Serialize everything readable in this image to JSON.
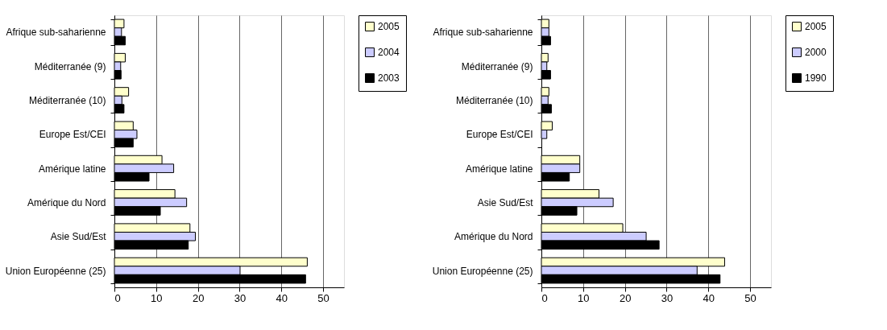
{
  "chart_data": [
    {
      "type": "bar",
      "orientation": "horizontal",
      "categories": [
        "Afrique sub-saharienne",
        "Méditerranée (9)",
        "Méditerranée (10)",
        "Europe Est/CEI",
        "Amérique latine",
        "Amérique du Nord",
        "Asie Sud/Est",
        "Union Européenne (25)"
      ],
      "series": [
        {
          "name": "2005",
          "color": "#ffffcc",
          "values": [
            2.3,
            2.6,
            3.4,
            4.5,
            11.4,
            14.5,
            18.1,
            46.2
          ]
        },
        {
          "name": "2004",
          "color": "#ccccff",
          "values": [
            1.7,
            1.5,
            1.8,
            5.4,
            14.2,
            17.3,
            19.4,
            30.1
          ]
        },
        {
          "name": "2003",
          "color": "#000000",
          "values": [
            2.6,
            1.6,
            2.3,
            4.5,
            8.3,
            11.0,
            17.7,
            45.8
          ]
        }
      ],
      "xlim": [
        0,
        55
      ],
      "xticks": [
        0,
        10,
        20,
        30,
        40,
        50
      ],
      "grid": "x",
      "legend": "right"
    },
    {
      "type": "bar",
      "orientation": "horizontal",
      "categories": [
        "Afrique sub-saharienne",
        "Méditerranée (9)",
        "Méditerranée (10)",
        "Europe Est/CEI",
        "Amérique latine",
        "Asie Sud/Est",
        "Amérique du Nord",
        "Union Européenne (25)"
      ],
      "series": [
        {
          "name": "2005",
          "color": "#ffffcc",
          "values": [
            1.8,
            1.6,
            1.8,
            2.6,
            9.2,
            13.8,
            19.5,
            43.9
          ]
        },
        {
          "name": "2000",
          "color": "#ccccff",
          "values": [
            1.8,
            1.3,
            1.6,
            1.3,
            9.2,
            17.2,
            25.1,
            37.3
          ]
        },
        {
          "name": "1990",
          "color": "#000000",
          "values": [
            2.2,
            2.2,
            2.4,
            null,
            6.7,
            8.5,
            28.2,
            42.8
          ]
        }
      ],
      "xlim": [
        0,
        55
      ],
      "xticks": [
        0,
        10,
        20,
        30,
        40,
        50
      ],
      "grid": "x",
      "legend": "right"
    }
  ]
}
